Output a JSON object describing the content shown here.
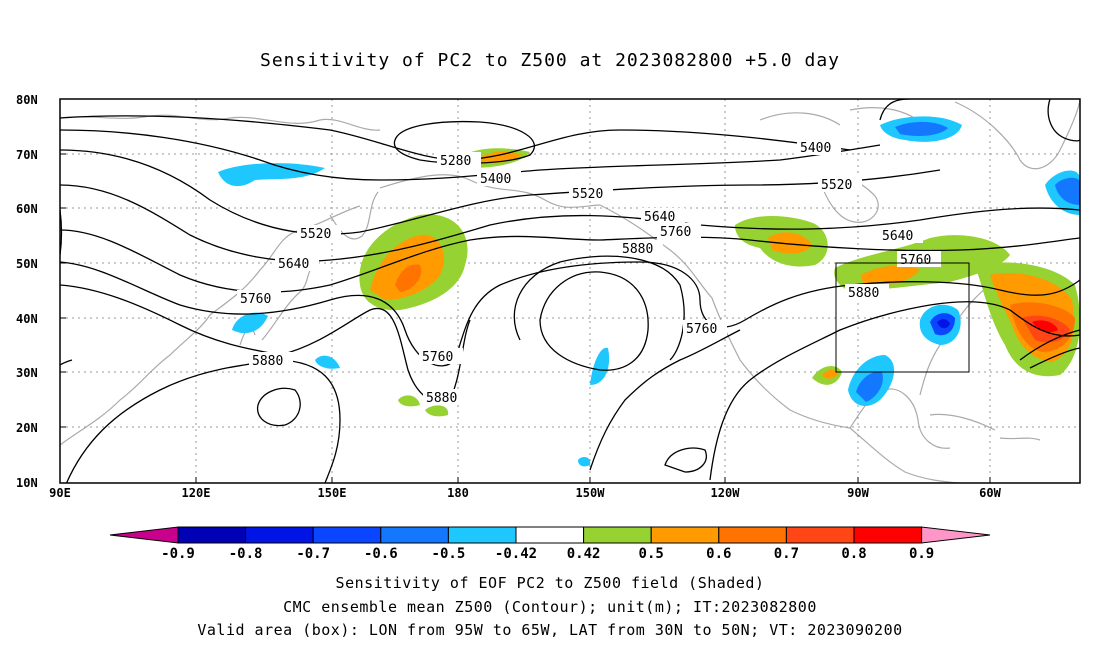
{
  "title": "Sensitivity of PC2 to Z500 at 2023082800 +5.0 day",
  "lat_labels": [
    "80N",
    "70N",
    "60N",
    "50N",
    "40N",
    "30N",
    "20N",
    "10N"
  ],
  "lon_labels": [
    "90E",
    "120E",
    "150E",
    "180",
    "150W",
    "120W",
    "90W",
    "60W"
  ],
  "contour_labels": [
    "5280",
    "5400",
    "5400",
    "5520",
    "5520",
    "5520",
    "5640",
    "5640",
    "5640",
    "5760",
    "5760",
    "5760",
    "5760",
    "5760",
    "5880",
    "5880",
    "5880",
    "5880"
  ],
  "colorbar": {
    "labels": [
      "-0.9",
      "-0.8",
      "-0.7",
      "-0.6",
      "-0.5",
      "-0.42",
      "0.42",
      "0.5",
      "0.6",
      "0.7",
      "0.8",
      "0.9"
    ],
    "colors": [
      "#0000b4",
      "#0014e6",
      "#0a46ff",
      "#1478ff",
      "#1ec8ff",
      "#ffffff",
      "#96d232",
      "#ff9b00",
      "#ff7300",
      "#ff4614",
      "#ff0000"
    ],
    "under_color": "#c8008c",
    "over_color": "#ff96c8"
  },
  "captions": [
    "Sensitivity of EOF PC2 to Z500 field (Shaded)",
    "CMC ensemble mean Z500 (Contour); unit(m); IT:2023082800",
    "Valid area (box): LON from 95W to 65W, LAT from 30N to 50N; VT: 2023090200"
  ]
}
